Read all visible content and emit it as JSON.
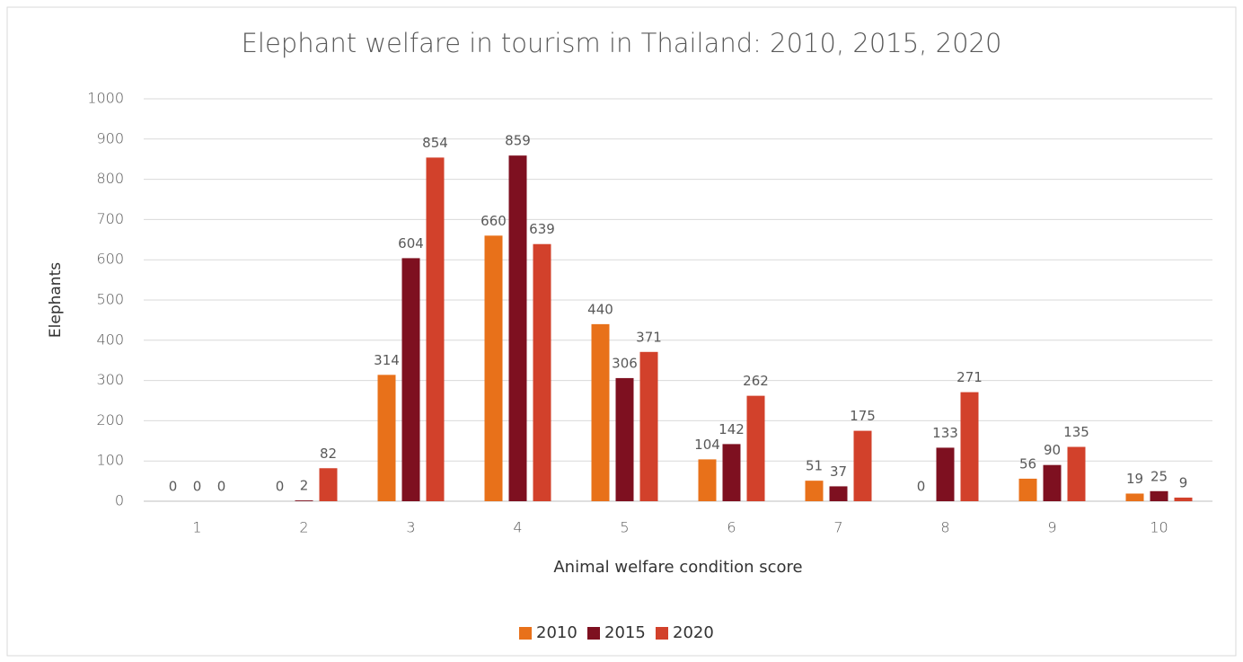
{
  "chart_data": {
    "type": "bar",
    "title": "Elephant welfare in tourism in Thailand: 2010, 2015, 2020",
    "x_label": "Animal welfare condition score",
    "y_label": "Elephants",
    "categories": [
      "1",
      "2",
      "3",
      "4",
      "5",
      "6",
      "7",
      "8",
      "9",
      "10"
    ],
    "series": [
      {
        "name": "2010",
        "color": "#e8711a",
        "values": [
          0,
          0,
          314,
          660,
          440,
          104,
          51,
          0,
          56,
          19
        ]
      },
      {
        "name": "2015",
        "color": "#7e1020",
        "values": [
          0,
          2,
          604,
          859,
          306,
          142,
          37,
          133,
          90,
          25
        ]
      },
      {
        "name": "2020",
        "color": "#d2412b",
        "values": [
          0,
          82,
          854,
          639,
          371,
          262,
          175,
          271,
          135,
          9
        ]
      }
    ],
    "ylim": [
      0,
      1000
    ],
    "yticks": [
      0,
      100,
      200,
      300,
      400,
      500,
      600,
      700,
      800,
      900,
      1000
    ],
    "grid": true,
    "legend": "bottom"
  }
}
